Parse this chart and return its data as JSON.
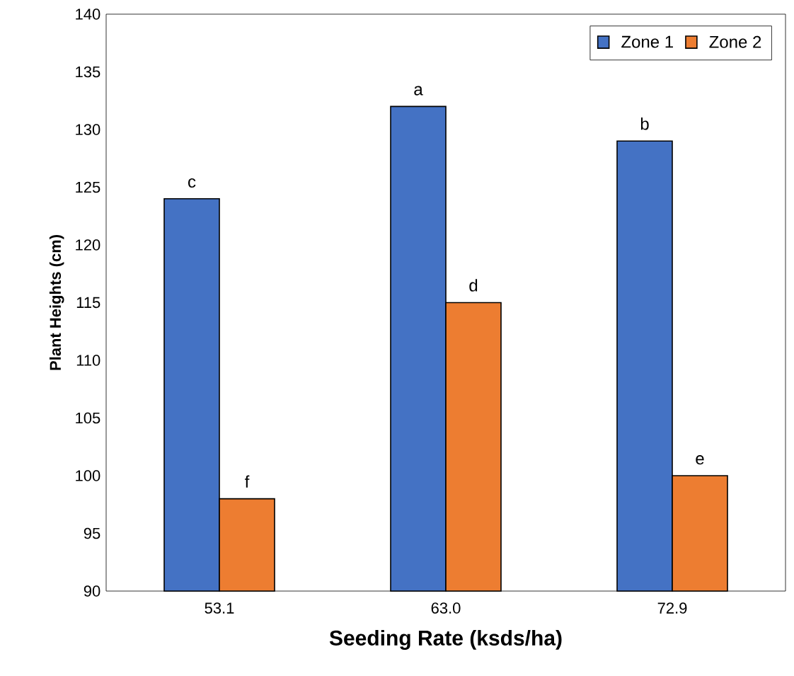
{
  "chart_data": {
    "type": "bar",
    "xlabel": "Seeding Rate (ksds/ha)",
    "ylabel": "Plant Heights (cm)",
    "categories": [
      "53.1",
      "63.0",
      "72.9"
    ],
    "series": [
      {
        "name": "Zone 1",
        "color": "#4472c4",
        "values": [
          124,
          132,
          129
        ],
        "value_labels": [
          "c",
          "a",
          "b"
        ]
      },
      {
        "name": "Zone 2",
        "color": "#ed7d31",
        "values": [
          98,
          115,
          100
        ],
        "value_labels": [
          "f",
          "d",
          "e"
        ]
      }
    ],
    "ylim": [
      90,
      140
    ],
    "yticks": [
      90,
      95,
      100,
      105,
      110,
      115,
      120,
      125,
      130,
      135,
      140
    ],
    "grid": false,
    "legend": "top right"
  }
}
